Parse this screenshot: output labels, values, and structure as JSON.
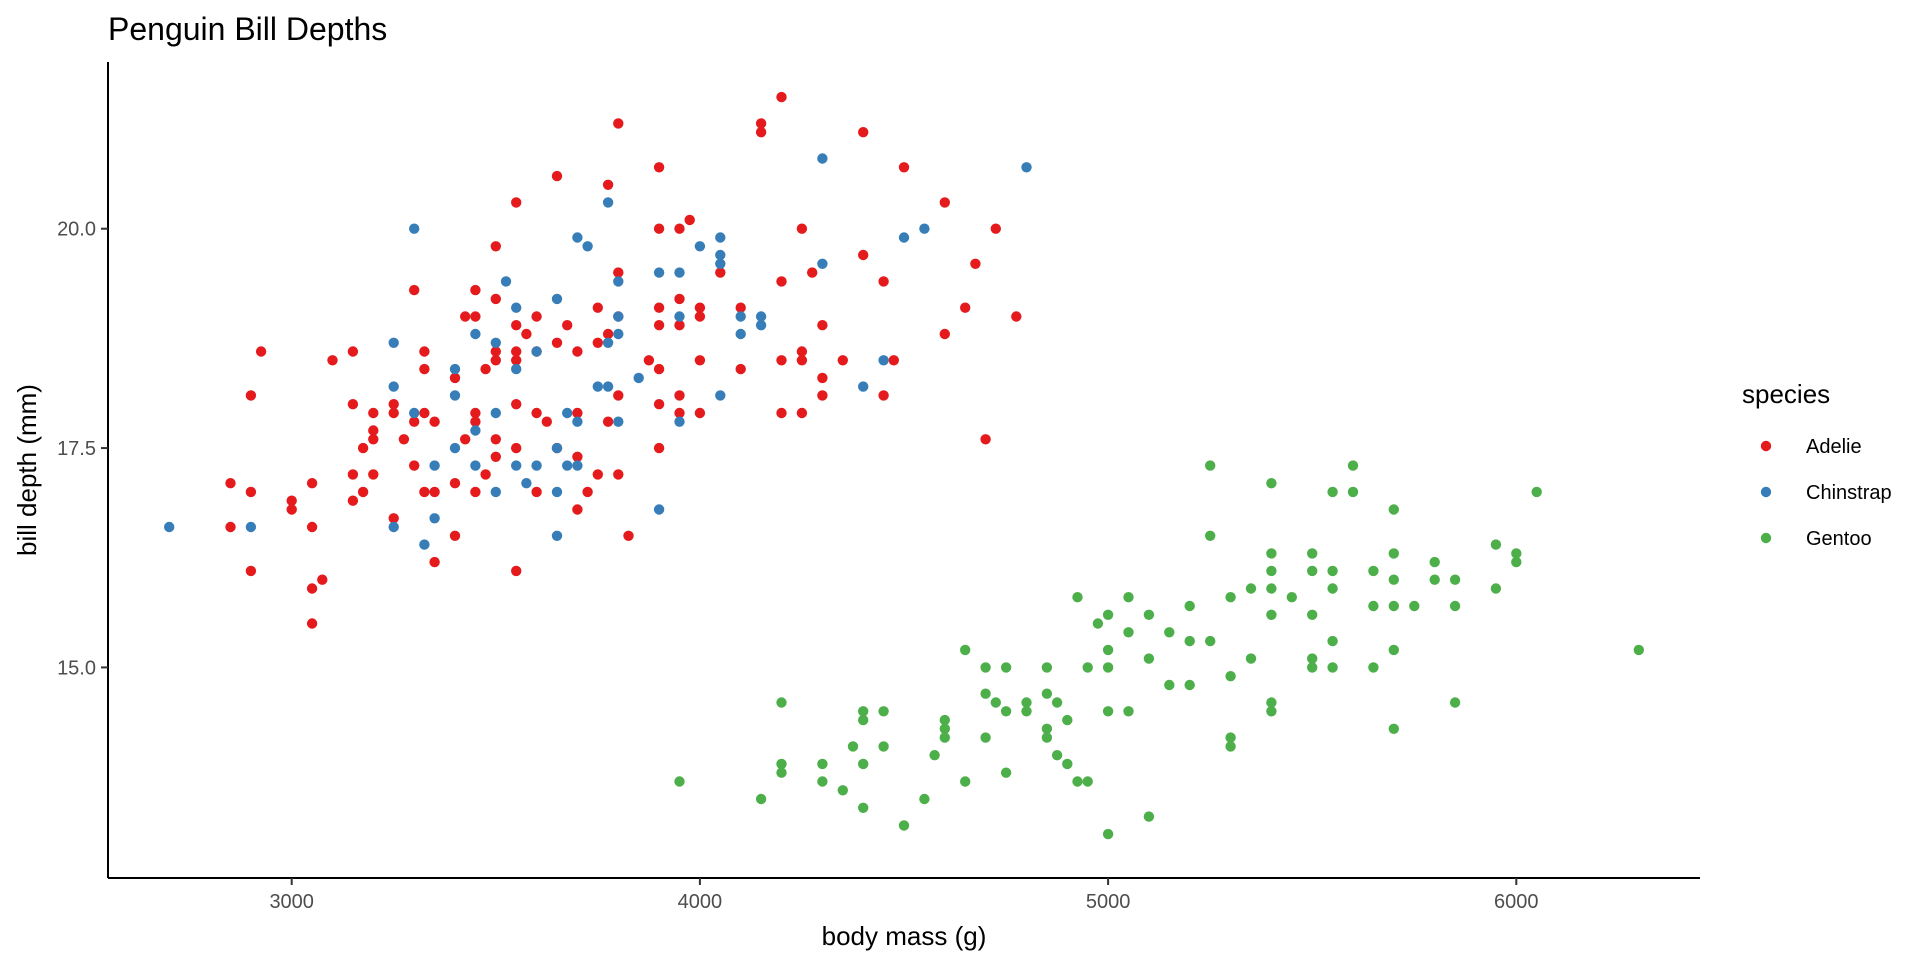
{
  "chart_data": {
    "type": "scatter",
    "title": "Penguin Bill Depths",
    "xlabel": "body mass (g)",
    "ylabel": "bill depth (mm)",
    "xlim": [
      2550,
      6450
    ],
    "ylim": [
      12.6,
      21.9
    ],
    "xticks": [
      3000,
      4000,
      5000,
      6000
    ],
    "xtick_labels": [
      "3000",
      "4000",
      "5000",
      "6000"
    ],
    "yticks": [
      15.0,
      17.5,
      20.0
    ],
    "ytick_labels": [
      "15.0",
      "17.5",
      "20.0"
    ],
    "grid": false,
    "legend": {
      "title": "species",
      "position": "right"
    },
    "series": [
      {
        "name": "Adelie",
        "color": "#e41a1c",
        "points": [
          [
            2850,
            17.1
          ],
          [
            2850,
            16.6
          ],
          [
            2900,
            18.1
          ],
          [
            2900,
            17.0
          ],
          [
            2900,
            16.1
          ],
          [
            2925,
            18.6
          ],
          [
            3000,
            16.9
          ],
          [
            3000,
            16.8
          ],
          [
            3050,
            17.1
          ],
          [
            3050,
            16.6
          ],
          [
            3050,
            15.9
          ],
          [
            3050,
            15.5
          ],
          [
            3075,
            16.0
          ],
          [
            3100,
            18.5
          ],
          [
            3150,
            18.6
          ],
          [
            3150,
            18.0
          ],
          [
            3150,
            17.2
          ],
          [
            3150,
            16.9
          ],
          [
            3175,
            17.5
          ],
          [
            3175,
            17.0
          ],
          [
            3200,
            17.9
          ],
          [
            3200,
            17.7
          ],
          [
            3200,
            17.6
          ],
          [
            3200,
            17.2
          ],
          [
            3250,
            18.0
          ],
          [
            3250,
            17.9
          ],
          [
            3250,
            16.7
          ],
          [
            3275,
            17.6
          ],
          [
            3300,
            19.3
          ],
          [
            3300,
            17.8
          ],
          [
            3300,
            17.3
          ],
          [
            3325,
            18.6
          ],
          [
            3325,
            18.4
          ],
          [
            3325,
            17.9
          ],
          [
            3325,
            17.0
          ],
          [
            3350,
            17.8
          ],
          [
            3350,
            17.0
          ],
          [
            3350,
            16.2
          ],
          [
            3400,
            18.3
          ],
          [
            3400,
            17.1
          ],
          [
            3400,
            16.5
          ],
          [
            3425,
            19.0
          ],
          [
            3425,
            17.6
          ],
          [
            3450,
            19.3
          ],
          [
            3450,
            19.0
          ],
          [
            3450,
            17.9
          ],
          [
            3450,
            17.8
          ],
          [
            3450,
            17.0
          ],
          [
            3475,
            18.4
          ],
          [
            3475,
            17.2
          ],
          [
            3500,
            19.8
          ],
          [
            3500,
            19.2
          ],
          [
            3500,
            18.6
          ],
          [
            3500,
            18.5
          ],
          [
            3500,
            17.6
          ],
          [
            3500,
            17.4
          ],
          [
            3550,
            20.3
          ],
          [
            3550,
            18.9
          ],
          [
            3550,
            18.6
          ],
          [
            3550,
            18.5
          ],
          [
            3550,
            18.0
          ],
          [
            3550,
            17.5
          ],
          [
            3550,
            16.1
          ],
          [
            3575,
            18.8
          ],
          [
            3600,
            19.0
          ],
          [
            3600,
            18.6
          ],
          [
            3600,
            17.9
          ],
          [
            3600,
            17.0
          ],
          [
            3625,
            17.8
          ],
          [
            3650,
            20.6
          ],
          [
            3650,
            18.7
          ],
          [
            3650,
            17.5
          ],
          [
            3675,
            18.9
          ],
          [
            3700,
            18.6
          ],
          [
            3700,
            17.9
          ],
          [
            3700,
            17.4
          ],
          [
            3700,
            16.8
          ],
          [
            3725,
            17.0
          ],
          [
            3750,
            19.1
          ],
          [
            3750,
            18.7
          ],
          [
            3750,
            17.2
          ],
          [
            3775,
            20.5
          ],
          [
            3775,
            18.8
          ],
          [
            3775,
            17.8
          ],
          [
            3800,
            21.2
          ],
          [
            3800,
            19.5
          ],
          [
            3800,
            19.0
          ],
          [
            3800,
            18.1
          ],
          [
            3800,
            17.2
          ],
          [
            3825,
            16.5
          ],
          [
            3875,
            18.5
          ],
          [
            3900,
            20.7
          ],
          [
            3900,
            20.0
          ],
          [
            3900,
            19.1
          ],
          [
            3900,
            18.9
          ],
          [
            3900,
            18.4
          ],
          [
            3900,
            18.0
          ],
          [
            3900,
            17.5
          ],
          [
            3950,
            20.0
          ],
          [
            3950,
            19.2
          ],
          [
            3950,
            18.9
          ],
          [
            3950,
            18.1
          ],
          [
            3950,
            17.9
          ],
          [
            3975,
            20.1
          ],
          [
            4000,
            19.1
          ],
          [
            4000,
            18.5
          ],
          [
            4000,
            17.9
          ],
          [
            4000,
            19.0
          ],
          [
            4050,
            19.5
          ],
          [
            4100,
            19.1
          ],
          [
            4100,
            18.4
          ],
          [
            4150,
            21.2
          ],
          [
            4150,
            21.1
          ],
          [
            4200,
            21.5
          ],
          [
            4200,
            19.4
          ],
          [
            4200,
            18.5
          ],
          [
            4200,
            17.9
          ],
          [
            4250,
            20.0
          ],
          [
            4250,
            18.6
          ],
          [
            4250,
            18.5
          ],
          [
            4250,
            17.9
          ],
          [
            4275,
            19.5
          ],
          [
            4300,
            18.9
          ],
          [
            4300,
            18.3
          ],
          [
            4300,
            18.1
          ],
          [
            4350,
            18.5
          ],
          [
            4400,
            21.1
          ],
          [
            4400,
            19.7
          ],
          [
            4450,
            19.4
          ],
          [
            4450,
            18.1
          ],
          [
            4475,
            18.5
          ],
          [
            4500,
            20.7
          ],
          [
            4600,
            20.3
          ],
          [
            4600,
            18.8
          ],
          [
            4650,
            19.1
          ],
          [
            4675,
            19.6
          ],
          [
            4700,
            17.6
          ],
          [
            4725,
            20.0
          ],
          [
            4775,
            19.0
          ]
        ]
      },
      {
        "name": "Chinstrap",
        "color": "#377eb8",
        "points": [
          [
            2700,
            16.6
          ],
          [
            2900,
            16.6
          ],
          [
            3250,
            18.7
          ],
          [
            3250,
            18.2
          ],
          [
            3250,
            16.6
          ],
          [
            3300,
            20.0
          ],
          [
            3300,
            17.9
          ],
          [
            3325,
            16.4
          ],
          [
            3350,
            17.3
          ],
          [
            3350,
            16.7
          ],
          [
            3400,
            18.4
          ],
          [
            3400,
            18.1
          ],
          [
            3400,
            17.5
          ],
          [
            3450,
            18.8
          ],
          [
            3450,
            17.7
          ],
          [
            3450,
            17.3
          ],
          [
            3500,
            18.7
          ],
          [
            3500,
            17.9
          ],
          [
            3500,
            17.0
          ],
          [
            3525,
            19.4
          ],
          [
            3550,
            19.1
          ],
          [
            3550,
            18.4
          ],
          [
            3550,
            17.3
          ],
          [
            3575,
            17.1
          ],
          [
            3600,
            18.6
          ],
          [
            3600,
            17.3
          ],
          [
            3650,
            19.2
          ],
          [
            3650,
            17.5
          ],
          [
            3650,
            17.0
          ],
          [
            3650,
            16.5
          ],
          [
            3675,
            17.9
          ],
          [
            3675,
            17.3
          ],
          [
            3700,
            19.9
          ],
          [
            3700,
            17.8
          ],
          [
            3700,
            17.3
          ],
          [
            3725,
            19.8
          ],
          [
            3750,
            18.2
          ],
          [
            3775,
            20.3
          ],
          [
            3775,
            18.7
          ],
          [
            3775,
            18.2
          ],
          [
            3800,
            19.4
          ],
          [
            3800,
            19.0
          ],
          [
            3800,
            18.8
          ],
          [
            3800,
            17.8
          ],
          [
            3850,
            18.3
          ],
          [
            3900,
            19.5
          ],
          [
            3900,
            16.8
          ],
          [
            3950,
            19.5
          ],
          [
            3950,
            19.0
          ],
          [
            3950,
            17.8
          ],
          [
            4000,
            19.8
          ],
          [
            4050,
            19.9
          ],
          [
            4050,
            19.7
          ],
          [
            4050,
            19.6
          ],
          [
            4050,
            18.1
          ],
          [
            4100,
            19.0
          ],
          [
            4100,
            18.8
          ],
          [
            4150,
            19.0
          ],
          [
            4150,
            18.9
          ],
          [
            4300,
            20.8
          ],
          [
            4300,
            19.6
          ],
          [
            4400,
            18.2
          ],
          [
            4450,
            18.5
          ],
          [
            4500,
            19.9
          ],
          [
            4550,
            20.0
          ],
          [
            4800,
            20.7
          ]
        ]
      },
      {
        "name": "Gentoo",
        "color": "#4daf4a",
        "points": [
          [
            3950,
            13.7
          ],
          [
            4150,
            13.5
          ],
          [
            4200,
            14.6
          ],
          [
            4200,
            13.9
          ],
          [
            4200,
            13.8
          ],
          [
            4300,
            13.9
          ],
          [
            4300,
            13.7
          ],
          [
            4350,
            13.6
          ],
          [
            4375,
            14.1
          ],
          [
            4400,
            14.5
          ],
          [
            4400,
            14.4
          ],
          [
            4400,
            13.9
          ],
          [
            4400,
            13.4
          ],
          [
            4450,
            14.5
          ],
          [
            4450,
            14.1
          ],
          [
            4500,
            13.2
          ],
          [
            4550,
            13.5
          ],
          [
            4575,
            14.0
          ],
          [
            4600,
            14.4
          ],
          [
            4600,
            14.3
          ],
          [
            4600,
            14.2
          ],
          [
            4650,
            15.2
          ],
          [
            4650,
            13.7
          ],
          [
            4700,
            15.0
          ],
          [
            4700,
            14.7
          ],
          [
            4700,
            14.2
          ],
          [
            4725,
            14.6
          ],
          [
            4750,
            15.0
          ],
          [
            4750,
            14.5
          ],
          [
            4750,
            13.8
          ],
          [
            4800,
            14.6
          ],
          [
            4800,
            14.5
          ],
          [
            4850,
            15.0
          ],
          [
            4850,
            14.7
          ],
          [
            4850,
            14.3
          ],
          [
            4850,
            14.2
          ],
          [
            4875,
            14.6
          ],
          [
            4875,
            14.0
          ],
          [
            4900,
            14.4
          ],
          [
            4900,
            13.9
          ],
          [
            4925,
            15.8
          ],
          [
            4925,
            13.7
          ],
          [
            4950,
            15.0
          ],
          [
            4950,
            13.7
          ],
          [
            4975,
            15.5
          ],
          [
            5000,
            15.6
          ],
          [
            5000,
            15.2
          ],
          [
            5000,
            15.0
          ],
          [
            5000,
            14.5
          ],
          [
            5000,
            13.1
          ],
          [
            5050,
            15.8
          ],
          [
            5050,
            15.4
          ],
          [
            5050,
            14.5
          ],
          [
            5100,
            15.6
          ],
          [
            5100,
            15.1
          ],
          [
            5100,
            13.3
          ],
          [
            5150,
            15.4
          ],
          [
            5150,
            14.8
          ],
          [
            5200,
            15.7
          ],
          [
            5200,
            15.3
          ],
          [
            5200,
            14.8
          ],
          [
            5250,
            17.3
          ],
          [
            5250,
            16.5
          ],
          [
            5250,
            15.3
          ],
          [
            5300,
            15.8
          ],
          [
            5300,
            14.9
          ],
          [
            5300,
            14.2
          ],
          [
            5300,
            14.1
          ],
          [
            5350,
            15.9
          ],
          [
            5350,
            15.1
          ],
          [
            5400,
            17.1
          ],
          [
            5400,
            16.3
          ],
          [
            5400,
            16.1
          ],
          [
            5400,
            15.9
          ],
          [
            5400,
            15.6
          ],
          [
            5400,
            14.6
          ],
          [
            5400,
            14.5
          ],
          [
            5450,
            15.8
          ],
          [
            5500,
            16.3
          ],
          [
            5500,
            16.1
          ],
          [
            5500,
            15.6
          ],
          [
            5500,
            15.1
          ],
          [
            5500,
            15.0
          ],
          [
            5550,
            17.0
          ],
          [
            5550,
            16.1
          ],
          [
            5550,
            15.9
          ],
          [
            5550,
            15.3
          ],
          [
            5550,
            15.0
          ],
          [
            5600,
            17.3
          ],
          [
            5600,
            17.0
          ],
          [
            5650,
            16.1
          ],
          [
            5650,
            15.7
          ],
          [
            5650,
            15.0
          ],
          [
            5700,
            16.8
          ],
          [
            5700,
            16.3
          ],
          [
            5700,
            16.0
          ],
          [
            5700,
            15.7
          ],
          [
            5700,
            15.2
          ],
          [
            5700,
            14.3
          ],
          [
            5750,
            15.7
          ],
          [
            5800,
            16.2
          ],
          [
            5800,
            16.0
          ],
          [
            5850,
            16.0
          ],
          [
            5850,
            15.7
          ],
          [
            5850,
            14.6
          ],
          [
            5950,
            16.4
          ],
          [
            5950,
            15.9
          ],
          [
            6000,
            16.3
          ],
          [
            6000,
            16.2
          ],
          [
            6050,
            17.0
          ],
          [
            6300,
            15.2
          ]
        ]
      }
    ]
  }
}
